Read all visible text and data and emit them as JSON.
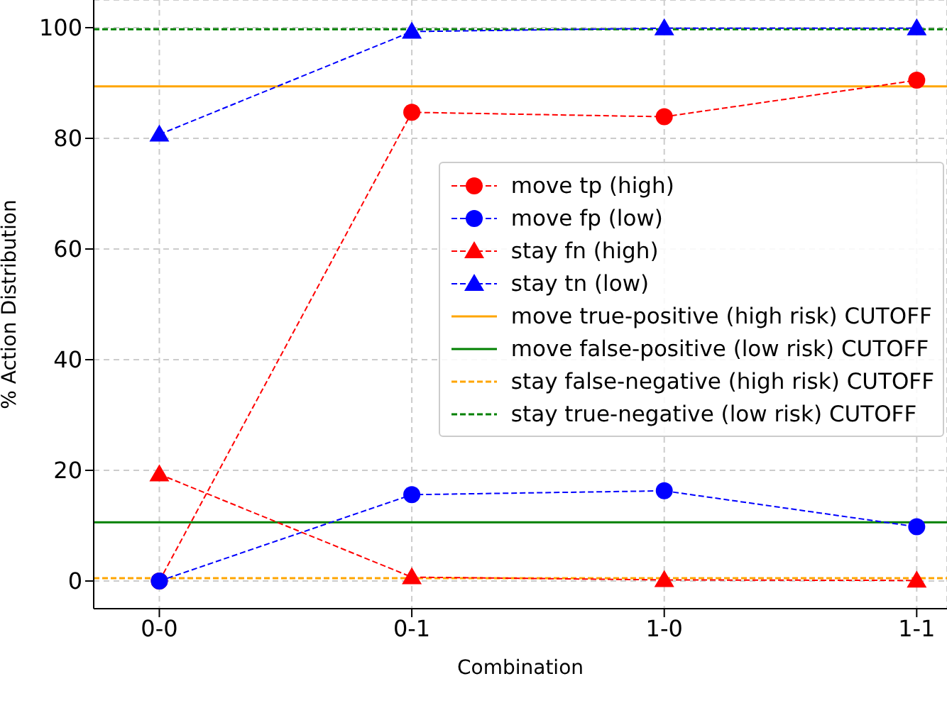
{
  "chart_data": {
    "type": "line",
    "xlabel": "Combination",
    "ylabel": "% Action Distribution",
    "categories": [
      "0-0",
      "0-1",
      "1-0",
      "1-1"
    ],
    "series": [
      {
        "name": "move tp (high)",
        "color": "#ff0000",
        "marker": "circle",
        "line_style": "dashed",
        "values": [
          0,
          84.7,
          83.9,
          90.5
        ]
      },
      {
        "name": "move fp (low)",
        "color": "#0000ff",
        "marker": "circle",
        "line_style": "dashed",
        "values": [
          0,
          15.6,
          16.3,
          9.8
        ]
      },
      {
        "name": "stay fn (high)",
        "color": "#ff0000",
        "marker": "triangle",
        "line_style": "dashed",
        "values": [
          19.3,
          0.7,
          0.2,
          0.1
        ]
      },
      {
        "name": "stay tn (low)",
        "color": "#0000ff",
        "marker": "triangle",
        "line_style": "dashed",
        "values": [
          80.7,
          99.3,
          99.9,
          99.9
        ]
      }
    ],
    "ref_lines": [
      {
        "axis": "y",
        "value": 89.4,
        "label": "move true-positive (high risk) CUTOFF",
        "color": "#ffa500",
        "line_style": "solid"
      },
      {
        "axis": "y",
        "value": 10.6,
        "label": "move false-positive (low risk) CUTOFF",
        "color": "#008000",
        "line_style": "solid"
      },
      {
        "axis": "y",
        "value": 0.5,
        "label": "stay false-negative (high risk) CUTOFF",
        "color": "#ffa500",
        "line_style": "dashed"
      },
      {
        "axis": "y",
        "value": 99.7,
        "label": "stay true-negative (low risk) CUTOFF",
        "color": "#008000",
        "line_style": "dashed"
      }
    ],
    "ylim": [
      -5,
      105
    ],
    "yticks": [
      0,
      20,
      40,
      60,
      80,
      100
    ],
    "grid": true,
    "legend": "center right"
  }
}
